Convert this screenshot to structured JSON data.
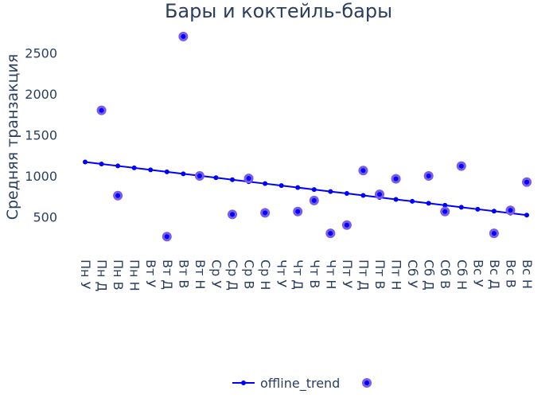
{
  "chart_data": {
    "type": "scatter",
    "title": "Бары и коктейль-бары",
    "xlabel": "",
    "ylabel": "Средняя транзакция",
    "ylim": [
      0,
      2800
    ],
    "yticks": [
      500,
      1000,
      1500,
      2000,
      2500
    ],
    "grid": false,
    "legend_position": "bottom",
    "categories": [
      "Пн У",
      "Пн Д",
      "Пн В",
      "Пн Н",
      "Вт У",
      "Вт Д",
      "Вт В",
      "Вт Н",
      "Ср У",
      "Ср Д",
      "Ср В",
      "Ср Н",
      "Чт У",
      "Чт Д",
      "Чт В",
      "Чт Н",
      "Пт У",
      "Пт Д",
      "Пт В",
      "Пт Н",
      "Сб У",
      "Сб Д",
      "Сб В",
      "Сб Н",
      "Вс У",
      "Вс Д",
      "Вс В",
      "Вс Н"
    ],
    "series": [
      {
        "name": "offline_trend",
        "kind": "line",
        "color": "#0000ff",
        "values": [
          1170,
          1146,
          1122,
          1098,
          1074,
          1050,
          1026,
          1002,
          978,
          954,
          930,
          906,
          882,
          858,
          834,
          810,
          786,
          762,
          738,
          714,
          690,
          666,
          642,
          618,
          594,
          570,
          546,
          522
        ]
      },
      {
        "kind": "markers",
        "color": "#7b5ce6",
        "points": [
          {
            "x": "Пн Д",
            "y": 1800
          },
          {
            "x": "Пн В",
            "y": 760
          },
          {
            "x": "Вт Д",
            "y": 260
          },
          {
            "x": "Вт В",
            "y": 2700
          },
          {
            "x": "Вт Н",
            "y": 1000
          },
          {
            "x": "Ср Д",
            "y": 530
          },
          {
            "x": "Ср В",
            "y": 970
          },
          {
            "x": "Ср Н",
            "y": 550
          },
          {
            "x": "Чт Д",
            "y": 565
          },
          {
            "x": "Чт В",
            "y": 700
          },
          {
            "x": "Чт Н",
            "y": 300
          },
          {
            "x": "Пт У",
            "y": 400
          },
          {
            "x": "Пт Д",
            "y": 1065
          },
          {
            "x": "Пт В",
            "y": 775
          },
          {
            "x": "Пт Н",
            "y": 965
          },
          {
            "x": "Сб Д",
            "y": 1000
          },
          {
            "x": "Сб В",
            "y": 565
          },
          {
            "x": "Сб Н",
            "y": 1120
          },
          {
            "x": "Вс Д",
            "y": 300
          },
          {
            "x": "Вс В",
            "y": 580
          },
          {
            "x": "Вс Н",
            "y": 925
          }
        ]
      }
    ]
  }
}
